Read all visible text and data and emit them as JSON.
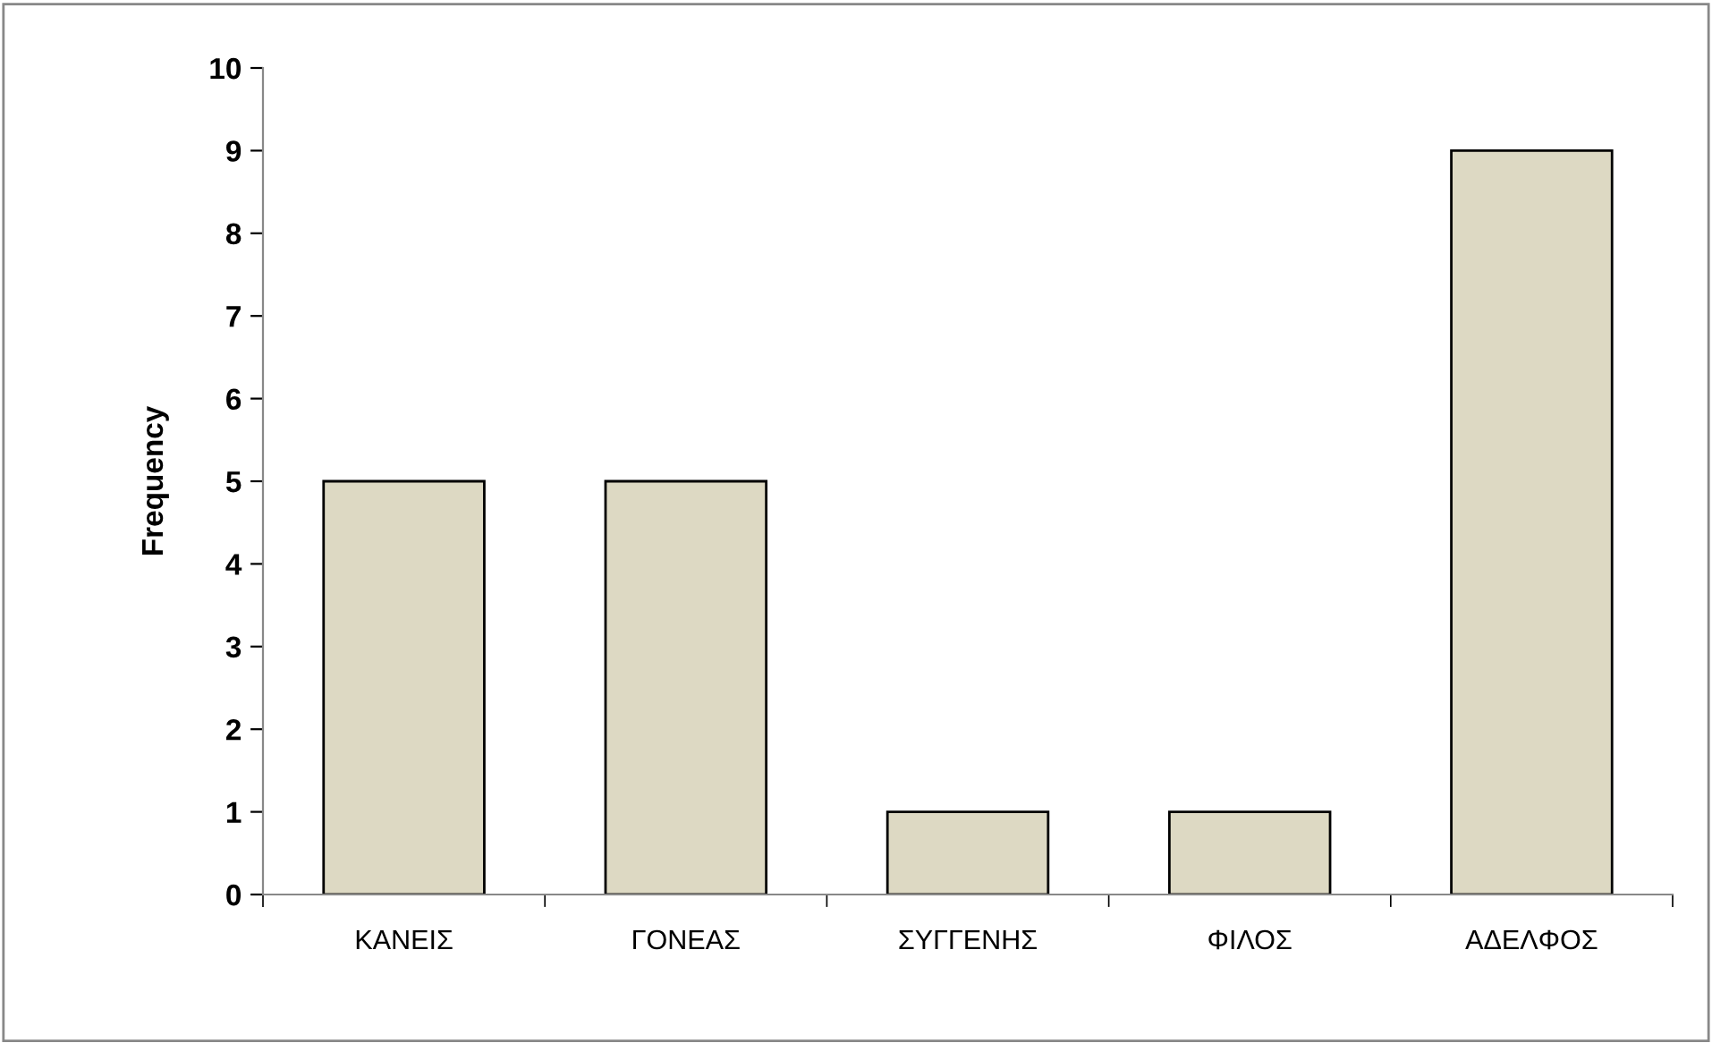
{
  "chart_data": {
    "type": "bar",
    "ylabel": "Frequency",
    "categories": [
      "ΚΑΝΕΙΣ",
      "ΓΟΝΕΑΣ",
      "ΣΥΓΓΕΝΗΣ",
      "ΦΙΛΟΣ",
      "ΑΔΕΛΦΟΣ"
    ],
    "values": [
      5,
      5,
      1,
      1,
      9
    ],
    "color": "#ddd9c3",
    "ylim": [
      0,
      10
    ],
    "yticks": [
      0,
      1,
      2,
      3,
      4,
      5,
      6,
      7,
      8,
      9,
      10
    ],
    "grid": false,
    "legend": false
  }
}
